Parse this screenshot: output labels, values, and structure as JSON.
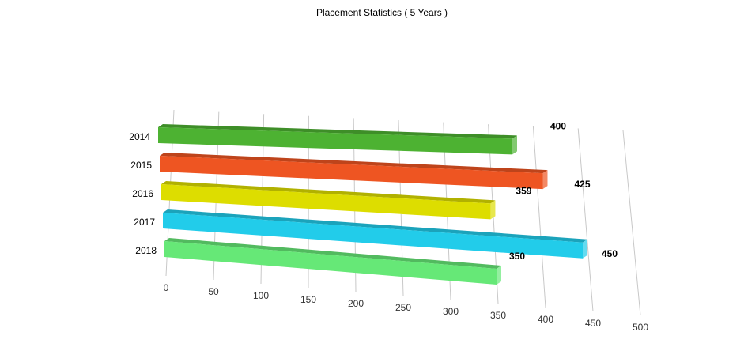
{
  "chart_data": {
    "type": "bar",
    "orientation": "horizontal",
    "style": "3d",
    "title": "Placement Statistics ( 5 Years )",
    "categories": [
      "2014",
      "2015",
      "2016",
      "2017",
      "2018"
    ],
    "values": [
      400,
      425,
      359,
      450,
      350
    ],
    "colors": [
      "#4db232",
      "#ee5522",
      "#dddd00",
      "#22ccea",
      "#66e877"
    ],
    "x_ticks": [
      "0",
      "50",
      "100",
      "150",
      "200",
      "250",
      "300",
      "350",
      "400",
      "450",
      "500"
    ],
    "xlim": [
      0,
      500
    ],
    "grid": true,
    "legend": "none"
  }
}
